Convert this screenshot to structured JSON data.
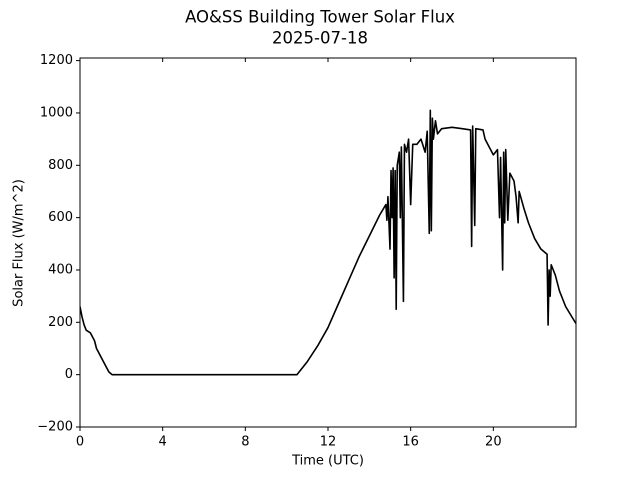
{
  "chart_data": {
    "type": "line",
    "title": "AO&SS Building Tower Solar Flux",
    "subtitle": "2025-07-18",
    "x_label": "Time (UTC)",
    "y_label": "Solar Flux (W/m^2)",
    "color": "#000000",
    "x": [
      0,
      0.1,
      0.2,
      0.3,
      0.5,
      0.7,
      0.8,
      1.0,
      1.2,
      1.4,
      1.55,
      10.5,
      11,
      11.5,
      12,
      12.5,
      13,
      13.5,
      14,
      14.5,
      14.8,
      14.85,
      14.9,
      15.0,
      15.05,
      15.1,
      15.15,
      15.2,
      15.25,
      15.3,
      15.35,
      15.45,
      15.5,
      15.55,
      15.65,
      15.7,
      15.8,
      15.9,
      16.0,
      16.1,
      16.3,
      16.5,
      16.7,
      16.8,
      16.9,
      16.95,
      17.0,
      17.05,
      17.1,
      17.2,
      17.3,
      17.5,
      18,
      18.5,
      18.9,
      18.95,
      19.0,
      19.1,
      19.15,
      19.5,
      19.6,
      19.8,
      20,
      20.2,
      20.3,
      20.35,
      20.45,
      20.5,
      20.55,
      20.6,
      20.7,
      20.8,
      21,
      21.1,
      21.2,
      21.25,
      21.5,
      21.7,
      22,
      22.3,
      22.6,
      22.65,
      22.7,
      22.75,
      22.8,
      23,
      23.2,
      23.5,
      24
    ],
    "values": [
      260,
      220,
      190,
      170,
      160,
      130,
      100,
      70,
      40,
      10,
      0,
      0,
      50,
      110,
      180,
      270,
      360,
      450,
      530,
      610,
      650,
      590,
      680,
      480,
      780,
      600,
      790,
      370,
      780,
      250,
      800,
      850,
      600,
      870,
      280,
      880,
      850,
      900,
      650,
      880,
      880,
      900,
      850,
      930,
      540,
      1010,
      550,
      980,
      900,
      970,
      920,
      940,
      945,
      940,
      935,
      490,
      950,
      570,
      940,
      935,
      900,
      870,
      840,
      860,
      600,
      830,
      400,
      850,
      580,
      860,
      590,
      770,
      740,
      680,
      580,
      700,
      630,
      580,
      520,
      480,
      460,
      190,
      400,
      300,
      420,
      380,
      320,
      260,
      195
    ],
    "xlim": [
      0,
      24
    ],
    "xticks": [
      0,
      4,
      8,
      12,
      16,
      20
    ],
    "ylim": [
      -200,
      1210
    ],
    "yticks": [
      {
        "value": -200,
        "label": "−200"
      },
      0,
      200,
      400,
      600,
      800,
      1000,
      1200
    ]
  }
}
